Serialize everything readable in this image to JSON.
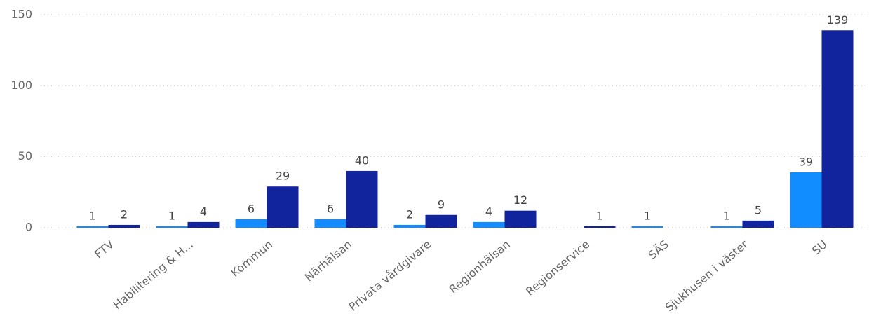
{
  "chart_data": {
    "type": "bar",
    "categories": [
      "FTV",
      "Habilitering & H...",
      "Kommun",
      "Närhälsan",
      "Privata vårdgivare",
      "Regionhälsan",
      "Regionservice",
      "SÄS",
      "Sjukhusen i väster",
      "SU"
    ],
    "series": [
      {
        "color": "#118dff",
        "values": [
          1,
          1,
          6,
          6,
          2,
          4,
          null,
          1,
          1,
          39
        ]
      },
      {
        "color": "#12239e",
        "values": [
          2,
          4,
          29,
          40,
          9,
          12,
          1,
          null,
          5,
          139
        ]
      }
    ],
    "ylim": [
      0,
      150
    ],
    "yticks": [
      0,
      50,
      100,
      150
    ],
    "grid": true
  }
}
